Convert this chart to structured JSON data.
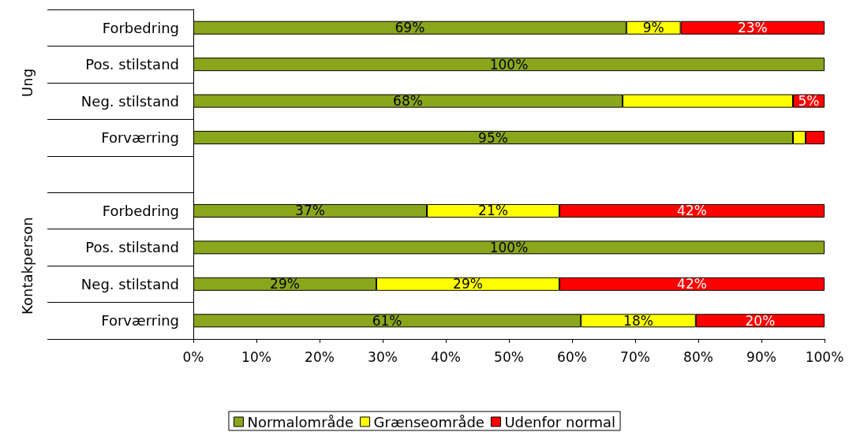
{
  "chart_data": {
    "type": "bar",
    "orientation": "horizontal",
    "stacked": true,
    "categories": [
      "Forbedring",
      "Pos. stilstand",
      "Neg. stilstand",
      "Forværring",
      null,
      "Forbedring",
      "Pos. stilstand",
      "Neg. stilstand",
      "Forværring"
    ],
    "series": [
      {
        "name": "Normalområde",
        "color": "#8aa61c",
        "values": [
          68.6,
          100,
          68,
          95,
          null,
          37,
          100,
          29,
          61.4
        ],
        "value_labels": [
          "69%",
          "100%",
          "68%",
          "95%",
          null,
          "37%",
          "100%",
          "29%",
          "61%"
        ]
      },
      {
        "name": "Grænseområde",
        "color": "#ffff00",
        "values": [
          8.6,
          0,
          27,
          2,
          null,
          21,
          0,
          29,
          18.2
        ],
        "value_labels": [
          "9%",
          null,
          null,
          null,
          null,
          "21%",
          null,
          "29%",
          "18%"
        ]
      },
      {
        "name": "Udenfor normal",
        "color": "#ff0000",
        "values": [
          22.8,
          0,
          5,
          3,
          null,
          42,
          0,
          42,
          20.4
        ],
        "value_labels": [
          "23%",
          null,
          "5%",
          null,
          null,
          "42%",
          null,
          "42%",
          "20%"
        ]
      }
    ],
    "xlim": [
      0,
      100
    ],
    "xticks": [
      {
        "value": 0,
        "label": "0%"
      },
      {
        "value": 10,
        "label": "10%"
      },
      {
        "value": 20,
        "label": "20%"
      },
      {
        "value": 30,
        "label": "30%"
      },
      {
        "value": 40,
        "label": "40%"
      },
      {
        "value": 50,
        "label": "50%"
      },
      {
        "value": 60,
        "label": "60%"
      },
      {
        "value": 70,
        "label": "70%"
      },
      {
        "value": 80,
        "label": "80%"
      },
      {
        "value": 90,
        "label": "90%"
      },
      {
        "value": 100,
        "label": "100%"
      }
    ],
    "annotations": [
      "Ung",
      "Kontakperson"
    ],
    "legend": "bottom",
    "grid": false
  }
}
